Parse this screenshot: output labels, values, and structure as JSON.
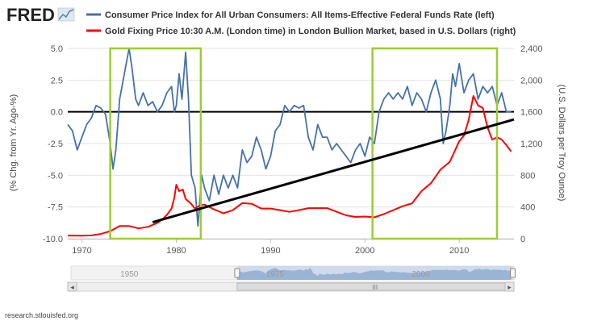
{
  "header": {
    "logo": "FRED",
    "logo_icon": "chart-line-icon",
    "legend": [
      {
        "label": "Consumer Price Index for All Urban Consumers: All Items-Effective Federal Funds Rate (left)",
        "color": "#4572a7"
      },
      {
        "label": "Gold Fixing Price 10:30 A.M. (London time) in London Bullion Market, based in U.S. Dollars (right)",
        "color": "#ff0000"
      }
    ]
  },
  "navigator": {
    "labels": [
      "1950",
      "1975",
      "2000"
    ],
    "range": [
      1968.5,
      2015.8
    ],
    "left_arrow": "◂",
    "right_arrow": "▸",
    "grip": "III"
  },
  "footer": {
    "source": "research.stlouisfed.org"
  },
  "colors": {
    "cpi": "#4572a7",
    "gold": "#ff0000",
    "highlight": "#9acd32",
    "trend": "#000000"
  },
  "chart_data": {
    "type": "line",
    "x_range": [
      1968.5,
      2015.8
    ],
    "x_ticks": [
      1970,
      1980,
      1990,
      2000,
      2010
    ],
    "ylabel_left": "(% Chg. from Yr. Ago-%)",
    "ylabel_right": "(U.S. Dollars per Troy Ounce)",
    "ylim_left": [
      -10,
      5
    ],
    "y_ticks_left": [
      "5.0",
      "2.5",
      "0.0",
      "-2.5",
      "-5.0",
      "-7.5",
      "-10.0"
    ],
    "ylim_right": [
      0,
      2400
    ],
    "y_ticks_right": [
      "2,400",
      "2,000",
      "1,600",
      "1,200",
      "800",
      "400",
      "0"
    ],
    "grid": true,
    "legend_position": "top",
    "series": [
      {
        "name": "Consumer Price Index for All Urban Consumers: All Items-Effective Federal Funds Rate (left)",
        "axis": "left",
        "color": "#4572a7",
        "x": [
          1968.5,
          1969.0,
          1969.5,
          1970.0,
          1970.5,
          1971.0,
          1971.5,
          1972.0,
          1972.5,
          1973.0,
          1973.3,
          1973.6,
          1974.0,
          1974.5,
          1975.0,
          1975.3,
          1975.7,
          1976.0,
          1976.5,
          1977.0,
          1977.5,
          1978.0,
          1978.5,
          1979.0,
          1979.5,
          1979.8,
          1980.0,
          1980.3,
          1980.6,
          1981.0,
          1981.3,
          1981.6,
          1982.0,
          1982.3,
          1982.7,
          1983.0,
          1983.5,
          1984.0,
          1984.5,
          1985.0,
          1985.5,
          1986.0,
          1986.5,
          1987.0,
          1987.5,
          1988.0,
          1988.5,
          1989.0,
          1989.5,
          1990.0,
          1990.5,
          1991.0,
          1991.5,
          1992.0,
          1992.5,
          1993.0,
          1993.5,
          1994.0,
          1994.5,
          1995.0,
          1995.5,
          1996.0,
          1996.5,
          1997.0,
          1997.5,
          1998.0,
          1998.5,
          1999.0,
          1999.5,
          2000.0,
          2000.5,
          2001.0,
          2001.5,
          2002.0,
          2002.5,
          2003.0,
          2003.5,
          2004.0,
          2004.5,
          2005.0,
          2005.5,
          2006.0,
          2006.5,
          2007.0,
          2007.5,
          2008.0,
          2008.3,
          2008.6,
          2009.0,
          2009.3,
          2009.6,
          2010.0,
          2010.5,
          2011.0,
          2011.5,
          2012.0,
          2012.5,
          2013.0,
          2013.5,
          2014.0,
          2014.5,
          2015.0,
          2015.5
        ],
        "values": [
          -1.0,
          -1.5,
          -3.0,
          -2.0,
          -1.0,
          -0.5,
          0.5,
          0.3,
          -0.2,
          -2.5,
          -4.5,
          -3.0,
          1.0,
          3.0,
          5.0,
          3.5,
          1.0,
          0.5,
          1.5,
          0.5,
          0.8,
          0.0,
          0.5,
          1.5,
          2.0,
          0.0,
          0.5,
          3.0,
          1.0,
          4.7,
          1.0,
          -5.0,
          -6.0,
          -9.0,
          -5.0,
          -6.0,
          -7.0,
          -5.0,
          -6.5,
          -5.0,
          -6.0,
          -5.0,
          -6.0,
          -3.0,
          -4.0,
          -3.5,
          -2.0,
          -3.0,
          -4.5,
          -3.5,
          -1.5,
          -1.0,
          0.5,
          0.0,
          0.5,
          0.3,
          0.5,
          -2.0,
          -3.0,
          -1.0,
          -2.0,
          -2.0,
          -3.0,
          -2.5,
          -3.0,
          -3.5,
          -4.0,
          -3.0,
          -2.5,
          -3.5,
          -2.0,
          -2.5,
          0.0,
          1.0,
          1.5,
          1.0,
          1.5,
          1.0,
          2.0,
          0.5,
          1.5,
          1.0,
          0.0,
          1.5,
          2.5,
          1.0,
          -2.5,
          -1.5,
          0.5,
          3.0,
          2.0,
          3.8,
          1.5,
          2.5,
          3.0,
          1.0,
          2.0,
          1.5,
          2.0,
          0.5,
          1.5,
          0.0,
          0.0
        ]
      },
      {
        "name": "Gold Fixing Price 10:30 A.M. (London time) in London Bullion Market, based in U.S. Dollars (right)",
        "axis": "right",
        "color": "#ff0000",
        "x": [
          1968.5,
          1970.0,
          1971.0,
          1972.0,
          1973.0,
          1974.0,
          1975.0,
          1976.0,
          1977.0,
          1978.0,
          1978.5,
          1979.0,
          1979.5,
          1979.8,
          1980.0,
          1980.3,
          1980.7,
          1981.0,
          1981.5,
          1982.0,
          1982.5,
          1983.0,
          1984.0,
          1985.0,
          1986.0,
          1987.0,
          1988.0,
          1989.0,
          1990.0,
          1991.0,
          1992.0,
          1993.0,
          1994.0,
          1995.0,
          1996.0,
          1997.0,
          1998.0,
          1999.0,
          2000.0,
          2001.0,
          2002.0,
          2003.0,
          2004.0,
          2005.0,
          2006.0,
          2007.0,
          2008.0,
          2009.0,
          2010.0,
          2010.5,
          2011.0,
          2011.5,
          2012.0,
          2012.5,
          2013.0,
          2013.5,
          2014.0,
          2014.5,
          2015.0,
          2015.5
        ],
        "values": [
          40,
          38,
          42,
          60,
          95,
          160,
          160,
          130,
          150,
          200,
          240,
          300,
          380,
          520,
          680,
          600,
          620,
          500,
          450,
          380,
          420,
          430,
          370,
          320,
          360,
          450,
          440,
          380,
          380,
          360,
          340,
          360,
          385,
          385,
          385,
          340,
          295,
          275,
          280,
          270,
          310,
          360,
          410,
          445,
          600,
          700,
          870,
          970,
          1230,
          1300,
          1500,
          1800,
          1680,
          1650,
          1400,
          1250,
          1280,
          1250,
          1180,
          1100
        ]
      }
    ],
    "annotations": [
      {
        "type": "rect",
        "x": [
          1973.0,
          1982.6
        ],
        "y": [
          -10,
          5
        ]
      },
      {
        "type": "rect",
        "x": [
          2000.8,
          2014.0
        ],
        "y": [
          -10,
          5
        ]
      },
      {
        "type": "trendline",
        "x": [
          1977.5,
          2015.8
        ],
        "y": [
          -8.7,
          -0.6
        ]
      }
    ]
  }
}
